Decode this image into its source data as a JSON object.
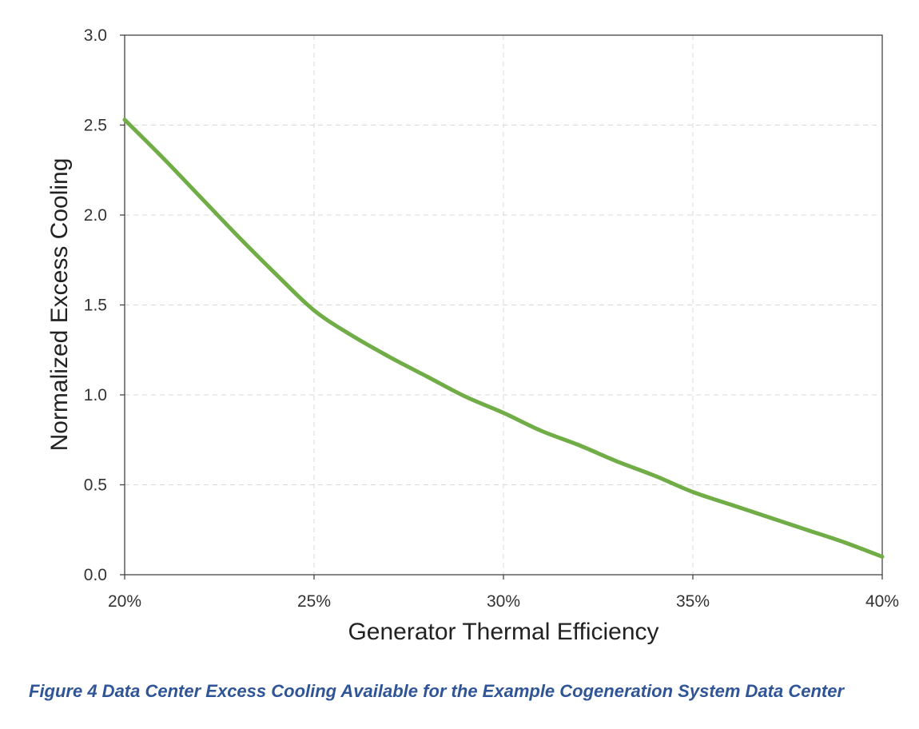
{
  "caption": "Figure 4 Data Center Excess Cooling Available for the Example Cogeneration System Data Center",
  "colors": {
    "series": "#70ad47",
    "caption": "#2f5597",
    "grid": "#d9d9d9"
  },
  "chart_data": {
    "type": "line",
    "xlabel": "Generator Thermal Efficiency",
    "ylabel": "Normalized Excess Cooling",
    "xlim": [
      20,
      40
    ],
    "ylim": [
      0,
      3.0
    ],
    "x_ticks": [
      20,
      25,
      30,
      35,
      40
    ],
    "x_tick_labels": [
      "20%",
      "25%",
      "30%",
      "35%",
      "40%"
    ],
    "y_ticks": [
      0,
      0.5,
      1.0,
      1.5,
      2.0,
      2.5,
      3.0
    ],
    "y_tick_labels": [
      "0.0",
      "0.5",
      "1.0",
      "1.5",
      "2.0",
      "2.5",
      "3.0"
    ],
    "grid": true,
    "legend": "none",
    "series": [
      {
        "x": [
          20,
          21,
          22,
          23,
          24,
          25,
          26,
          27,
          28,
          29,
          30,
          31,
          32,
          33,
          34,
          35,
          36,
          37,
          38,
          39,
          40
        ],
        "y": [
          2.53,
          2.32,
          2.1,
          1.88,
          1.67,
          1.47,
          1.33,
          1.21,
          1.1,
          0.99,
          0.9,
          0.8,
          0.72,
          0.63,
          0.55,
          0.46,
          0.39,
          0.32,
          0.25,
          0.18,
          0.1
        ]
      }
    ]
  }
}
